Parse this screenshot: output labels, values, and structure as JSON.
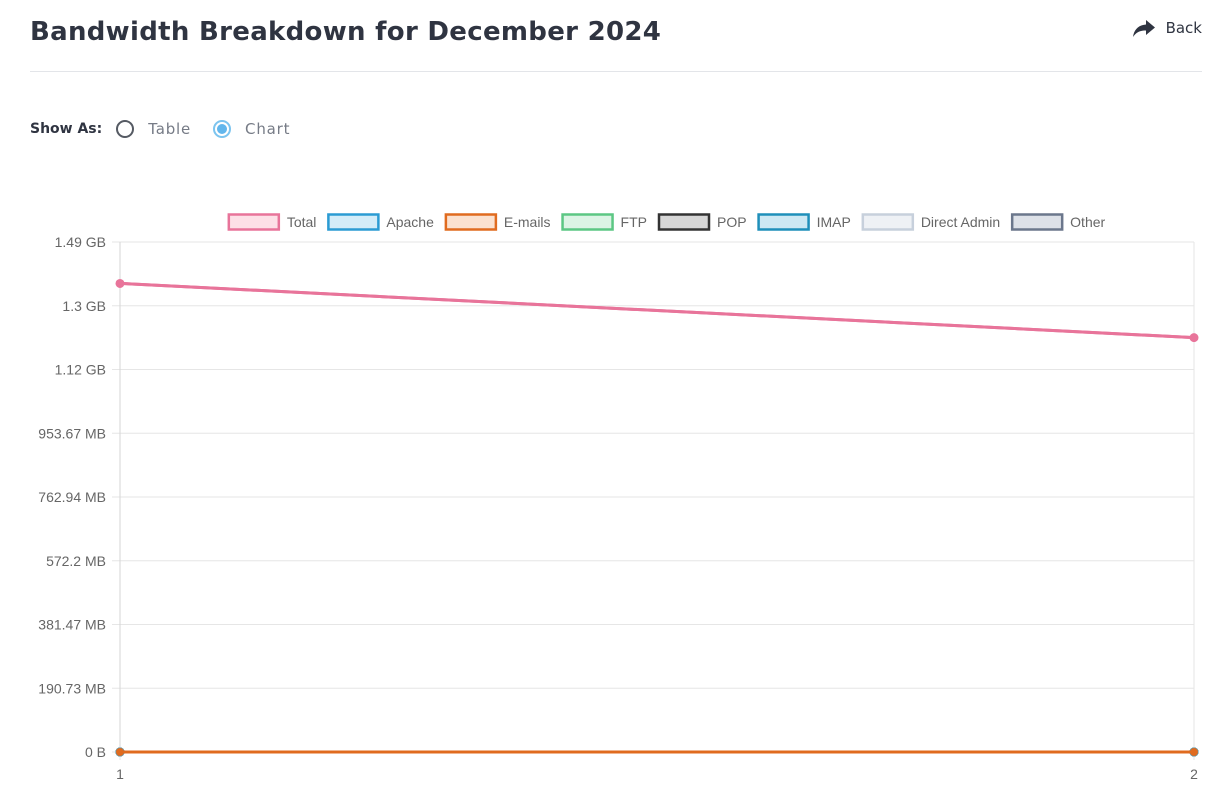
{
  "header": {
    "title": "Bandwidth Breakdown for December 2024",
    "back_label": "Back"
  },
  "view_toggle": {
    "label": "Show As:",
    "options": [
      {
        "label": "Table",
        "selected": false
      },
      {
        "label": "Chart",
        "selected": true
      }
    ]
  },
  "icons": {
    "back": "share-arrow-icon"
  },
  "chart_data": {
    "type": "line",
    "x": [
      1,
      2
    ],
    "y_ticks": [
      "0 B",
      "190.73 MB",
      "381.47 MB",
      "572.2 MB",
      "762.94 MB",
      "953.67 MB",
      "1.12 GB",
      "1.3 GB",
      "1.49 GB"
    ],
    "y_unit": "bytes",
    "ylim": [
      0,
      1600000000
    ],
    "grid": true,
    "legend_placement": "top",
    "series": [
      {
        "name": "Total",
        "color": "#e8749a",
        "fill": "#fde0e7",
        "values": [
          1470000000,
          1300000000
        ]
      },
      {
        "name": "Apache",
        "color": "#2b9bd3",
        "fill": "#d3ecf8",
        "values": [
          0,
          0
        ]
      },
      {
        "name": "E-mails",
        "color": "#e06b1f",
        "fill": "#fbe1cf",
        "values": [
          0,
          0
        ]
      },
      {
        "name": "FTP",
        "color": "#5cc784",
        "fill": "#dcf4e5",
        "values": [
          0,
          0
        ]
      },
      {
        "name": "POP",
        "color": "#333333",
        "fill": "#d6d6d6",
        "values": [
          0,
          0
        ]
      },
      {
        "name": "IMAP",
        "color": "#1f8fba",
        "fill": "#cde8f3",
        "values": [
          0,
          0
        ]
      },
      {
        "name": "Direct Admin",
        "color": "#c7d0dc",
        "fill": "#eef1f5",
        "values": [
          0,
          0
        ]
      },
      {
        "name": "Other",
        "color": "#6b778c",
        "fill": "#dde1e8",
        "values": [
          0,
          0
        ]
      }
    ]
  }
}
